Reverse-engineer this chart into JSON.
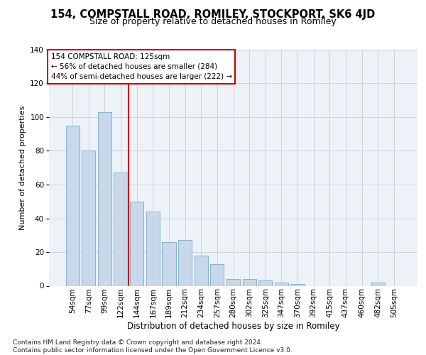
{
  "title": "154, COMPSTALL ROAD, ROMILEY, STOCKPORT, SK6 4JD",
  "subtitle": "Size of property relative to detached houses in Romiley",
  "xlabel": "Distribution of detached houses by size in Romiley",
  "ylabel": "Number of detached properties",
  "categories": [
    "54sqm",
    "77sqm",
    "99sqm",
    "122sqm",
    "144sqm",
    "167sqm",
    "189sqm",
    "212sqm",
    "234sqm",
    "257sqm",
    "280sqm",
    "302sqm",
    "325sqm",
    "347sqm",
    "370sqm",
    "392sqm",
    "415sqm",
    "437sqm",
    "460sqm",
    "482sqm",
    "505sqm"
  ],
  "values": [
    95,
    80,
    103,
    67,
    50,
    44,
    26,
    27,
    18,
    13,
    4,
    4,
    3,
    2,
    1,
    0,
    0,
    0,
    0,
    2,
    0
  ],
  "bar_color": "#c8d8ea",
  "bar_edge_color": "#7aaac8",
  "vline_x": 3.5,
  "vline_color": "#cc0000",
  "annotation_text": "154 COMPSTALL ROAD: 125sqm\n← 56% of detached houses are smaller (284)\n44% of semi-detached houses are larger (222) →",
  "annotation_box_color": "white",
  "annotation_box_edge": "#cc0000",
  "footer": "Contains HM Land Registry data © Crown copyright and database right 2024.\nContains public sector information licensed under the Open Government Licence v3.0.",
  "ylim": [
    0,
    140
  ],
  "background_color": "#edf2f7",
  "grid_color": "#c8d4e0",
  "title_fontsize": 10.5,
  "subtitle_fontsize": 9,
  "ylabel_fontsize": 8,
  "xlabel_fontsize": 8.5,
  "tick_fontsize": 7.5,
  "footer_fontsize": 6.5
}
